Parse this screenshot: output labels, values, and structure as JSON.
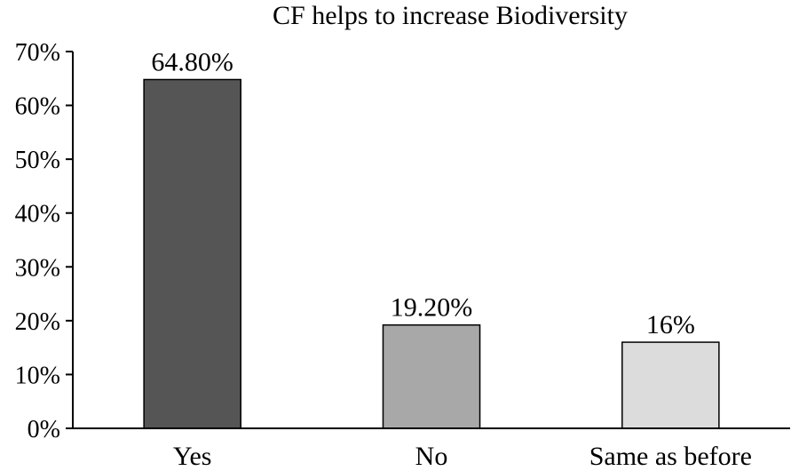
{
  "chart_data": {
    "type": "bar",
    "title": "CF helps to increase Biodiversity",
    "categories": [
      "Yes",
      "No",
      "Same as before"
    ],
    "values": [
      64.8,
      19.2,
      16
    ],
    "value_labels": [
      "64.80%",
      "19.20%",
      "16%"
    ],
    "colors": [
      "#555555",
      "#a8a8a8",
      "#dcdcdc"
    ],
    "ylim": [
      0,
      70
    ],
    "yticks": [
      "0%",
      "10%",
      "20%",
      "30%",
      "40%",
      "50%",
      "60%",
      "70%"
    ],
    "xlabel": "",
    "ylabel": "",
    "grid": false,
    "legend": "none"
  }
}
